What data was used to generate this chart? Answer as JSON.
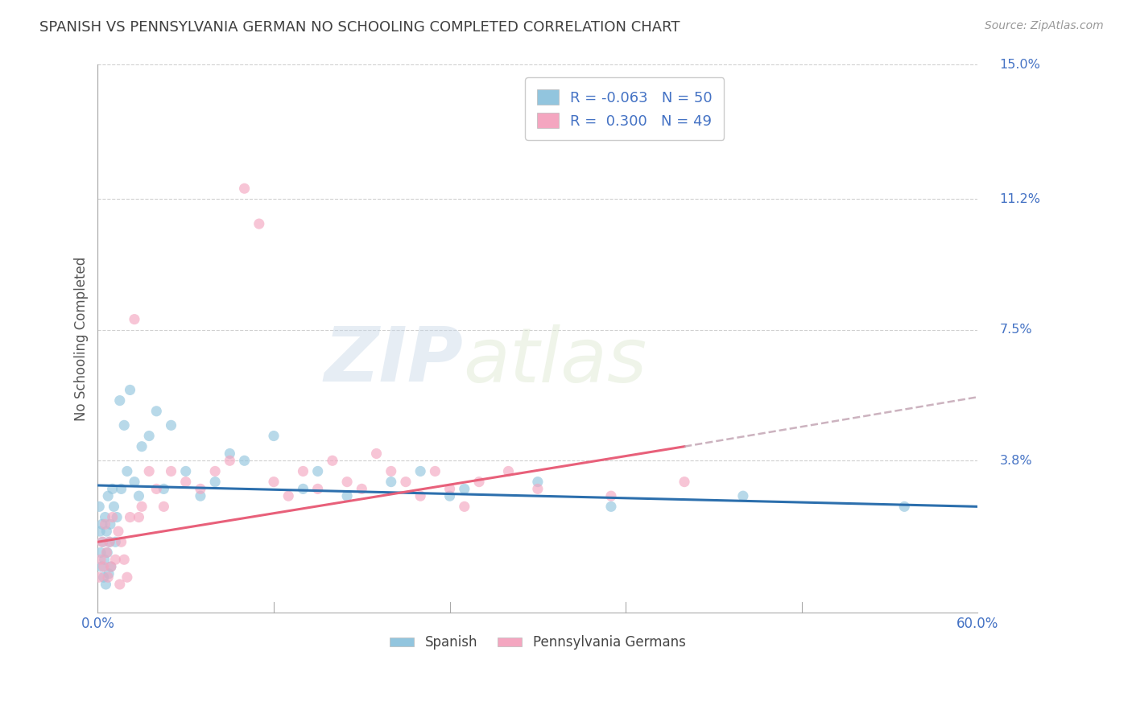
{
  "title": "SPANISH VS PENNSYLVANIA GERMAN NO SCHOOLING COMPLETED CORRELATION CHART",
  "source_text": "Source: ZipAtlas.com",
  "ylabel": "No Schooling Completed",
  "xlim": [
    0.0,
    60.0
  ],
  "ylim": [
    -0.5,
    15.0
  ],
  "yticks": [
    0.0,
    3.8,
    7.5,
    11.2,
    15.0
  ],
  "ytick_labels": [
    "",
    "3.8%",
    "7.5%",
    "11.2%",
    "15.0%"
  ],
  "watermark_zip": "ZIP",
  "watermark_atlas": "atlas",
  "legend_labels": [
    "Spanish",
    "Pennsylvania Germans"
  ],
  "R_spanish": -0.063,
  "N_spanish": 50,
  "R_penn": 0.3,
  "N_penn": 49,
  "blue_color": "#92c5de",
  "pink_color": "#f4a6c0",
  "blue_line_color": "#2c6fad",
  "pink_line_color": "#e8607a",
  "title_color": "#404040",
  "tick_color": "#4472c4",
  "grid_color": "#d0d0d0",
  "spanish_x": [
    0.1,
    0.15,
    0.2,
    0.25,
    0.3,
    0.35,
    0.4,
    0.45,
    0.5,
    0.55,
    0.6,
    0.65,
    0.7,
    0.75,
    0.8,
    0.85,
    0.9,
    1.0,
    1.1,
    1.2,
    1.3,
    1.5,
    1.6,
    1.8,
    2.0,
    2.2,
    2.5,
    2.8,
    3.0,
    3.5,
    4.0,
    4.5,
    5.0,
    6.0,
    7.0,
    8.0,
    9.0,
    10.0,
    12.0,
    14.0,
    15.0,
    17.0,
    20.0,
    22.0,
    24.0,
    25.0,
    30.0,
    35.0,
    44.0,
    55.0
  ],
  "spanish_y": [
    2.5,
    1.8,
    1.2,
    0.8,
    2.0,
    1.5,
    0.5,
    1.0,
    2.2,
    0.3,
    1.8,
    1.2,
    2.8,
    0.6,
    1.5,
    2.0,
    0.8,
    3.0,
    2.5,
    1.5,
    2.2,
    5.5,
    3.0,
    4.8,
    3.5,
    5.8,
    3.2,
    2.8,
    4.2,
    4.5,
    5.2,
    3.0,
    4.8,
    3.5,
    2.8,
    3.2,
    4.0,
    3.8,
    4.5,
    3.0,
    3.5,
    2.8,
    3.2,
    3.5,
    2.8,
    3.0,
    3.2,
    2.5,
    2.8,
    2.5
  ],
  "penn_x": [
    0.1,
    0.2,
    0.3,
    0.4,
    0.5,
    0.6,
    0.7,
    0.8,
    0.9,
    1.0,
    1.2,
    1.4,
    1.5,
    1.6,
    1.8,
    2.0,
    2.2,
    2.5,
    2.8,
    3.0,
    3.5,
    4.0,
    4.5,
    5.0,
    6.0,
    7.0,
    8.0,
    9.0,
    10.0,
    11.0,
    12.0,
    13.0,
    14.0,
    15.0,
    16.0,
    17.0,
    18.0,
    19.0,
    20.0,
    21.0,
    22.0,
    23.0,
    24.0,
    25.0,
    26.0,
    28.0,
    30.0,
    35.0,
    40.0
  ],
  "penn_y": [
    0.5,
    1.0,
    1.5,
    0.8,
    2.0,
    1.2,
    0.5,
    1.5,
    0.8,
    2.2,
    1.0,
    1.8,
    0.3,
    1.5,
    1.0,
    0.5,
    2.2,
    7.8,
    2.2,
    2.5,
    3.5,
    3.0,
    2.5,
    3.5,
    3.2,
    3.0,
    3.5,
    3.8,
    11.5,
    10.5,
    3.2,
    2.8,
    3.5,
    3.0,
    3.8,
    3.2,
    3.0,
    4.0,
    3.5,
    3.2,
    2.8,
    3.5,
    3.0,
    2.5,
    3.2,
    3.5,
    3.0,
    2.8,
    3.2
  ],
  "blue_reg_x0": 0.0,
  "blue_reg_y0": 3.1,
  "blue_reg_x1": 60.0,
  "blue_reg_y1": 2.5,
  "pink_reg_x0": 0.0,
  "pink_reg_y0": 1.5,
  "pink_reg_x1": 40.0,
  "pink_reg_y1": 4.2,
  "pink_dash_x0": 40.0,
  "pink_dash_y0": 4.2,
  "pink_dash_x1": 60.0,
  "pink_dash_y1": 5.6
}
